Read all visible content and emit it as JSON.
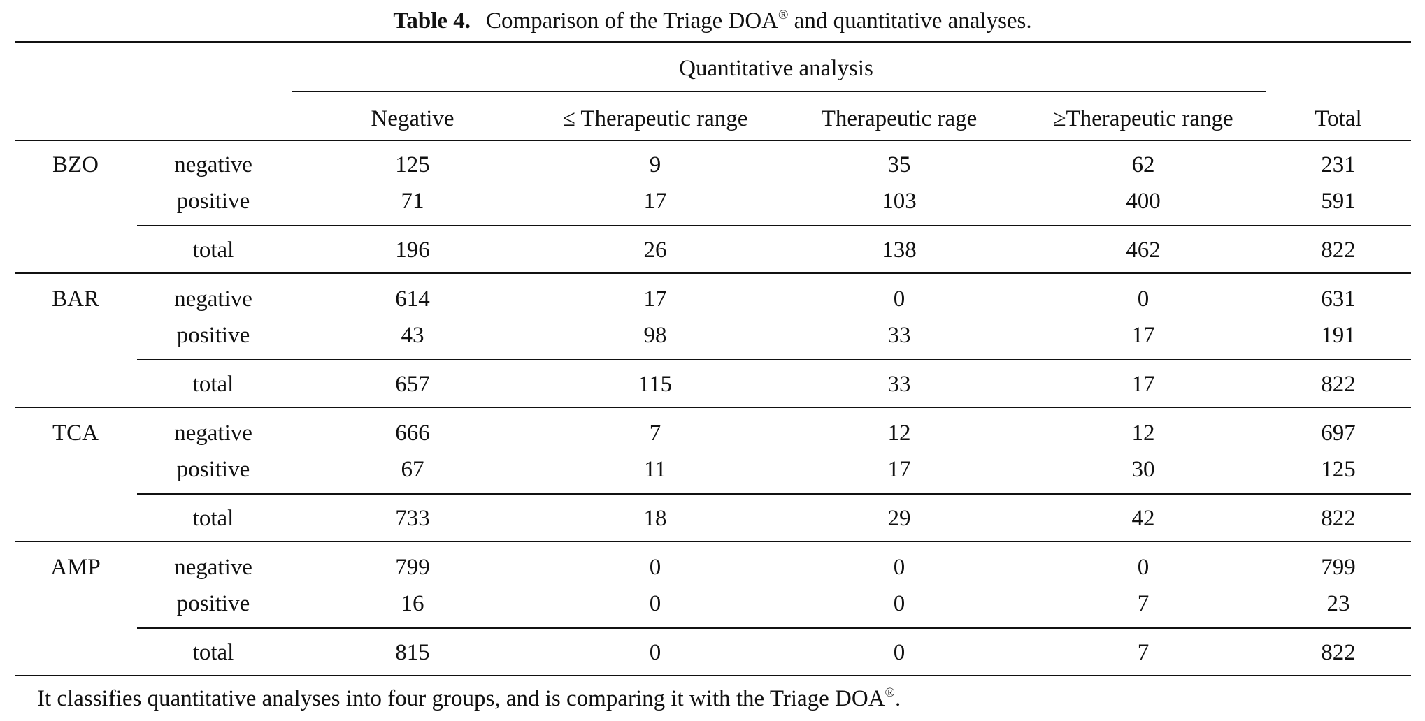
{
  "caption": {
    "label": "Table 4.",
    "text": "Comparison of the Triage DOA",
    "reg": "®",
    "text_after": " and quantitative analyses."
  },
  "spanner": "Quantitative analysis",
  "columns": [
    "Negative",
    "≤ Therapeutic range",
    "Therapeutic rage",
    "≥Therapeutic range",
    "Total"
  ],
  "groups": [
    {
      "name": "BZO",
      "rows": [
        {
          "label": "negative",
          "values": [
            "125",
            "9",
            "35",
            "62",
            "231"
          ]
        },
        {
          "label": "positive",
          "values": [
            "71",
            "17",
            "103",
            "400",
            "591"
          ]
        }
      ],
      "total": {
        "label": "total",
        "values": [
          "196",
          "26",
          "138",
          "462",
          "822"
        ]
      }
    },
    {
      "name": "BAR",
      "rows": [
        {
          "label": "negative",
          "values": [
            "614",
            "17",
            "0",
            "0",
            "631"
          ]
        },
        {
          "label": "positive",
          "values": [
            "43",
            "98",
            "33",
            "17",
            "191"
          ]
        }
      ],
      "total": {
        "label": "total",
        "values": [
          "657",
          "115",
          "33",
          "17",
          "822"
        ]
      }
    },
    {
      "name": "TCA",
      "rows": [
        {
          "label": "negative",
          "values": [
            "666",
            "7",
            "12",
            "12",
            "697"
          ]
        },
        {
          "label": "positive",
          "values": [
            "67",
            "11",
            "17",
            "30",
            "125"
          ]
        }
      ],
      "total": {
        "label": "total",
        "values": [
          "733",
          "18",
          "29",
          "42",
          "822"
        ]
      }
    },
    {
      "name": "AMP",
      "rows": [
        {
          "label": "negative",
          "values": [
            "799",
            "0",
            "0",
            "0",
            "799"
          ]
        },
        {
          "label": "positive",
          "values": [
            "16",
            "0",
            "0",
            "7",
            "23"
          ]
        }
      ],
      "total": {
        "label": "total",
        "values": [
          "815",
          "0",
          "0",
          "7",
          "822"
        ]
      }
    }
  ],
  "footnote": {
    "text": "It classifies quantitative analyses into four groups, and is comparing it with the Triage DOA",
    "reg": "®",
    "end": "."
  }
}
